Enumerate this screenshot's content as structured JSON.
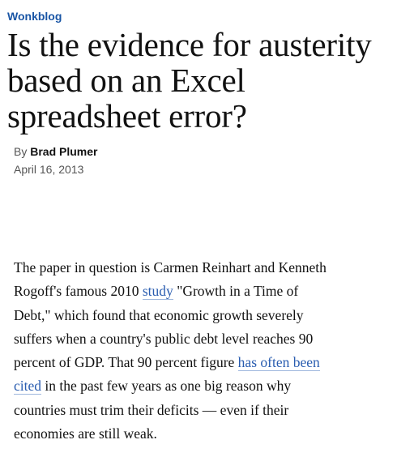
{
  "kicker": "Wonkblog",
  "headline": "Is the evidence for austerity based on an Excel spreadsheet error?",
  "byline": {
    "prefix": "By",
    "author": "Brad Plumer"
  },
  "date": "April 16, 2013",
  "paragraph": {
    "part1": "The paper in question is Carmen Reinhart and Kenneth Rogoff's famous 2010",
    "link1": "study",
    "part2": "\"Growth in a Time of Debt,\" which found that economic growth severely suffers when a country's public debt level reaches 90 percent of GDP. That 90 percent figure",
    "link2": "has often been cited",
    "part3": "in the past few years as one big reason why countries must trim their deficits — even if their economies are still weak."
  },
  "colors": {
    "kicker": "#1955a5",
    "link": "#2a5db0",
    "text": "#111111",
    "meta": "#555555"
  }
}
